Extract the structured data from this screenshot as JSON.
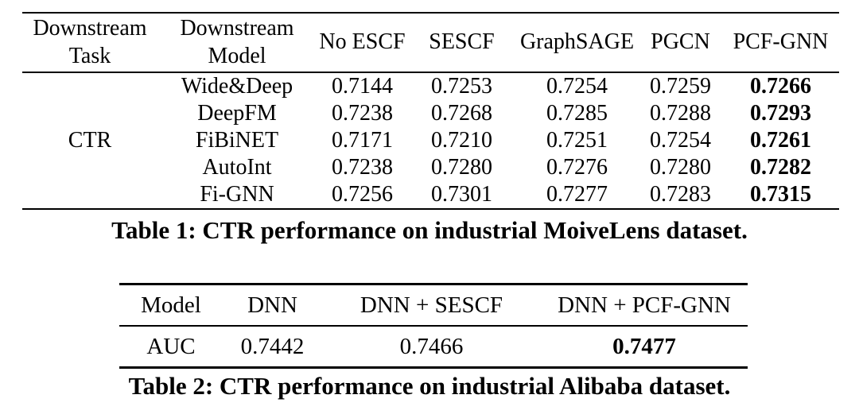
{
  "table1": {
    "header": {
      "task": "Downstream Task",
      "model": "Downstream Model",
      "methods": [
        "No ESCF",
        "SESCF",
        "GraphSAGE",
        "PGCN",
        "PCF-GNN"
      ]
    },
    "task_label": "CTR",
    "rows": [
      {
        "model": "Wide&Deep",
        "values": [
          "0.7144",
          "0.7253",
          "0.7254",
          "0.7259",
          "0.7266"
        ]
      },
      {
        "model": "DeepFM",
        "values": [
          "0.7238",
          "0.7268",
          "0.7285",
          "0.7288",
          "0.7293"
        ]
      },
      {
        "model": "FiBiNET",
        "values": [
          "0.7171",
          "0.7210",
          "0.7251",
          "0.7254",
          "0.7261"
        ]
      },
      {
        "model": "AutoInt",
        "values": [
          "0.7238",
          "0.7280",
          "0.7276",
          "0.7280",
          "0.7282"
        ]
      },
      {
        "model": "Fi-GNN",
        "values": [
          "0.7256",
          "0.7301",
          "0.7277",
          "0.7283",
          "0.7315"
        ]
      }
    ],
    "caption": "Table 1: CTR performance on industrial MoiveLens dataset."
  },
  "table2": {
    "header": [
      "Model",
      "DNN",
      "DNN + SESCF",
      "DNN + PCF-GNN"
    ],
    "row": {
      "label": "AUC",
      "values": [
        "0.7442",
        "0.7466",
        "0.7477"
      ]
    },
    "caption": "Table 2: CTR performance on industrial Alibaba dataset."
  },
  "colors": {
    "text": "#000000",
    "background": "#ffffff",
    "rule": "#000000"
  }
}
